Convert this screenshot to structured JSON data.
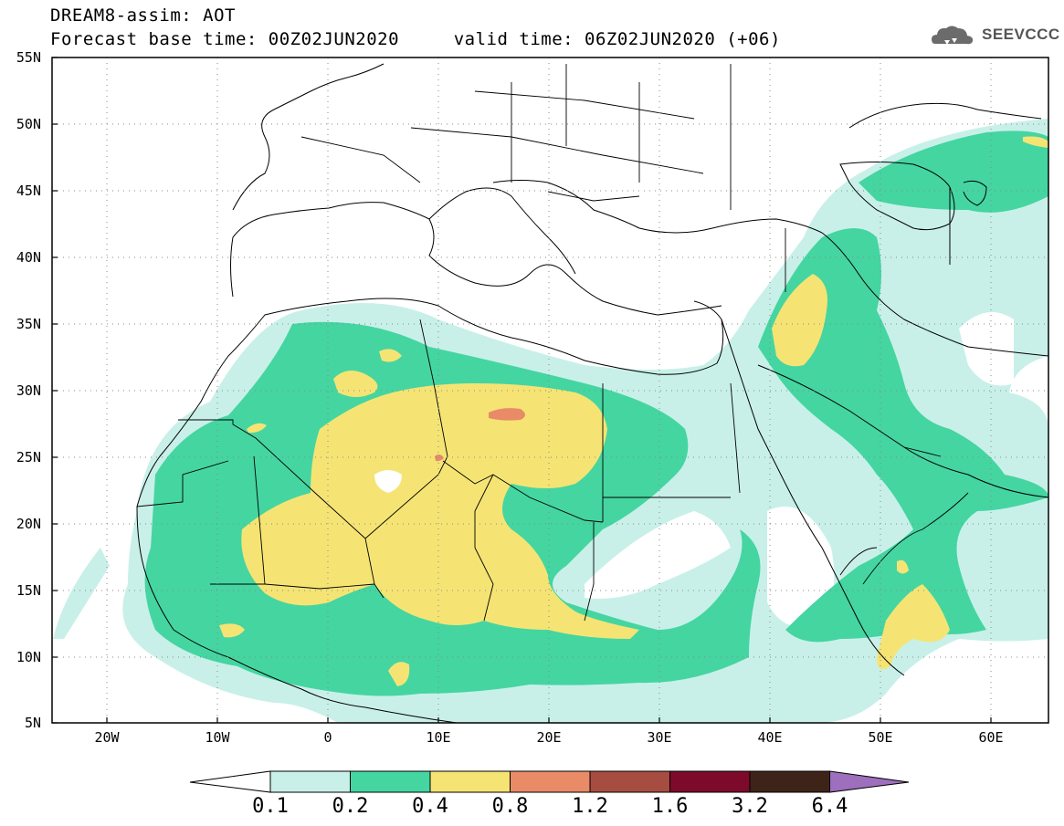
{
  "header": {
    "line1": "DREAM8-assim: AOT",
    "line2": "Forecast base time: 00Z02JUN2020     valid time: 06Z02JUN2020 (+06)"
  },
  "logo": {
    "text": "SEEVCCC",
    "icon": "cloud-icon"
  },
  "map": {
    "lat_labels": [
      "55N",
      "50N",
      "45N",
      "40N",
      "35N",
      "30N",
      "25N",
      "20N",
      "15N",
      "10N",
      "5N"
    ],
    "lon_labels": [
      "20W",
      "10W",
      "0",
      "10E",
      "20E",
      "30E",
      "40E",
      "50E",
      "60E"
    ],
    "lon_range": [
      -25,
      65
    ],
    "lat_range": [
      5,
      55
    ]
  },
  "colorbar": {
    "labels": [
      "0.1",
      "0.2",
      "0.4",
      "0.8",
      "1.2",
      "1.6",
      "3.2",
      "6.4"
    ],
    "colors": [
      "#c8f0e9",
      "#45d5a1",
      "#f5e474",
      "#e88b66",
      "#a64c41",
      "#7d0a2a",
      "#3e2418",
      "#9d6fbd"
    ]
  },
  "colors": {
    "aot_01": "#c8f0e9",
    "aot_02": "#45d5a1",
    "aot_04": "#f5e474",
    "aot_08": "#e88b66"
  }
}
